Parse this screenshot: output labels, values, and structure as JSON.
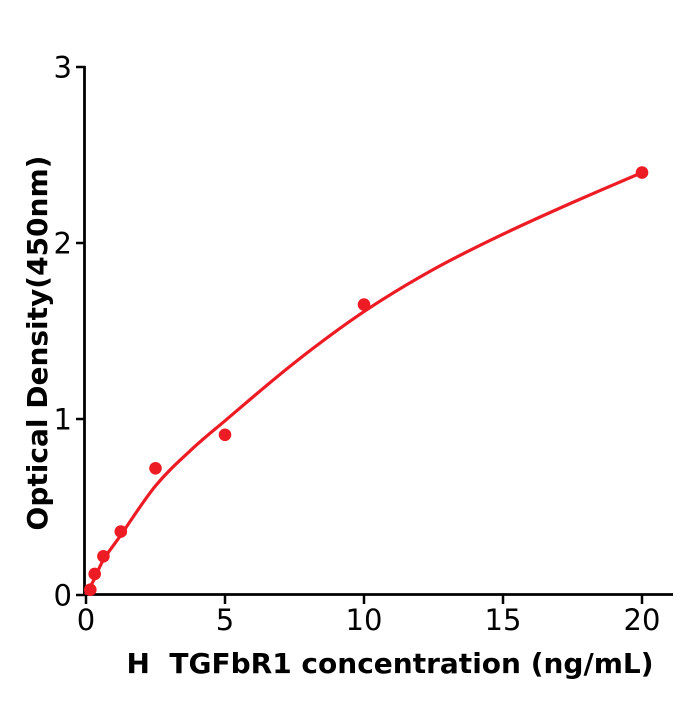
{
  "figure": {
    "background": "#ffffff"
  },
  "style": {
    "accent_color": "#ed1c24",
    "axis_color": "#000000",
    "text_color": "#000000",
    "curve_width": 3.2,
    "axis_width": 2.8,
    "point_radius": 6.3
  },
  "chart_data": {
    "type": "scatter",
    "title": "",
    "xlabel": "H  TGFbR1 concentration (ng/mL)",
    "ylabel": "Optical Density(450nm)",
    "xlim": [
      0,
      21.1
    ],
    "ylim": [
      0,
      3
    ],
    "x_ticks": [
      0,
      5,
      10,
      15,
      20
    ],
    "y_ticks": [
      0,
      1,
      2,
      3
    ],
    "grid": false,
    "legend_position": "none",
    "series": [
      {
        "name": "standard-data-points",
        "type": "scatter",
        "color": "#ed1c24",
        "x": [
          0.156,
          0.312,
          0.625,
          1.25,
          2.5,
          5,
          10,
          20
        ],
        "y": [
          0.03,
          0.12,
          0.22,
          0.36,
          0.72,
          0.91,
          1.65,
          2.4
        ]
      },
      {
        "name": "fitted-curve",
        "type": "line",
        "color": "#ed1c24",
        "x": [
          0,
          0.3,
          0.625,
          1.25,
          2.5,
          3.75,
          5,
          7.5,
          10,
          12.5,
          15,
          17.5,
          20
        ],
        "y": [
          0.01,
          0.09,
          0.2,
          0.34,
          0.62,
          0.82,
          0.99,
          1.32,
          1.61,
          1.85,
          2.05,
          2.23,
          2.4
        ]
      }
    ]
  }
}
